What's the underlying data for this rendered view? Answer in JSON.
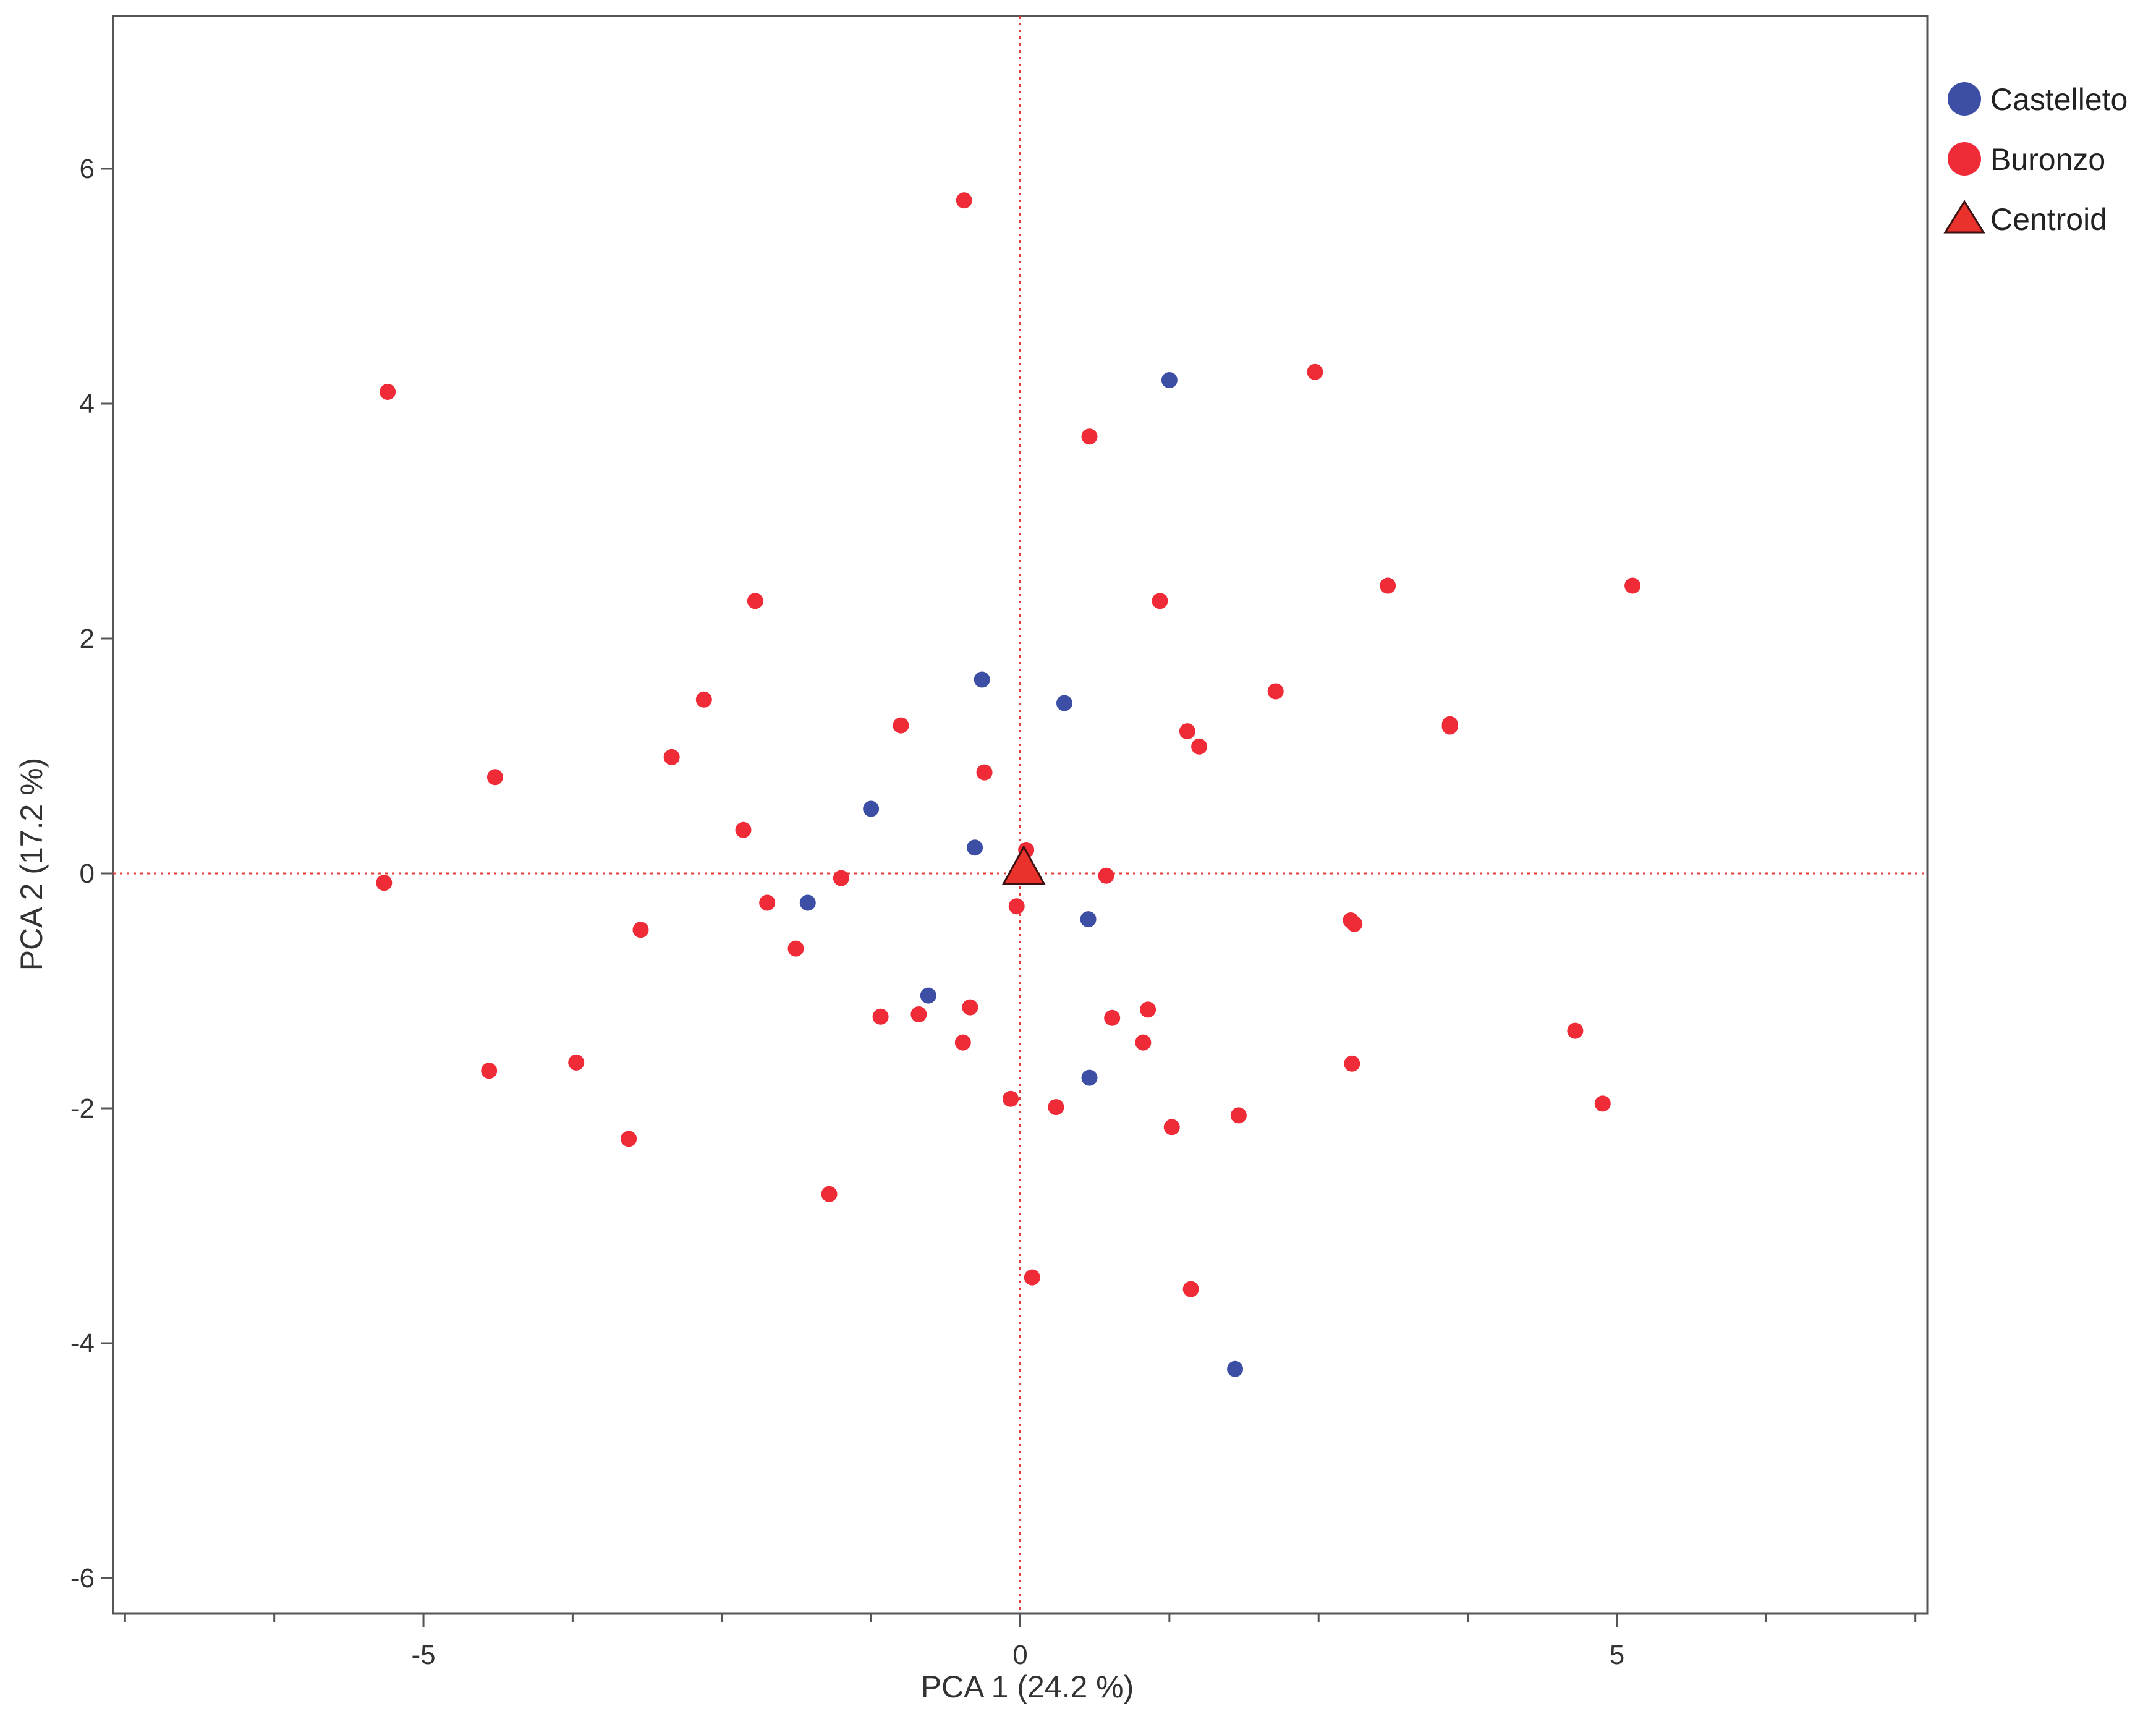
{
  "chart_data": {
    "type": "scatter",
    "title": "",
    "xlabel": "PCA 1 (24.2 %)",
    "ylabel": "PCA 2 (17.2 %)",
    "xlim": [
      -7.6,
      7.6
    ],
    "ylim": [
      -6.3,
      7.3
    ],
    "x_ticks": [
      -5,
      0,
      5
    ],
    "x_minor_ticks": [
      -7.5,
      -6.25,
      -5,
      -3.75,
      -2.5,
      -1.25,
      0,
      1.25,
      2.5,
      3.75,
      5,
      6.25,
      7.5
    ],
    "y_ticks": [
      6,
      4,
      2,
      0,
      -2,
      -4,
      -6
    ],
    "grid": false,
    "reference_lines": {
      "x": 0,
      "y": 0,
      "style": "dotted",
      "color": "#e53a3a"
    },
    "legend": {
      "position": "top-right outside"
    },
    "colors": {
      "Castelleto": "#3c4fa5",
      "Buronzo": "#ee2b37",
      "Centroid": "#e8322b"
    },
    "series": [
      {
        "name": "Castelleto",
        "marker": "circle",
        "points": [
          [
            1.25,
            4.2
          ],
          [
            -0.32,
            1.65
          ],
          [
            0.37,
            1.45
          ],
          [
            -1.25,
            0.55
          ],
          [
            -0.38,
            0.22
          ],
          [
            -1.78,
            -0.25
          ],
          [
            0.57,
            -0.39
          ],
          [
            -0.77,
            -1.04
          ],
          [
            0.58,
            -1.74
          ],
          [
            1.8,
            -4.22
          ]
        ]
      },
      {
        "name": "Buronzo",
        "marker": "circle",
        "points": [
          [
            -0.47,
            5.73
          ],
          [
            -5.3,
            4.1
          ],
          [
            2.47,
            4.27
          ],
          [
            0.58,
            3.72
          ],
          [
            -2.22,
            2.32
          ],
          [
            1.17,
            2.32
          ],
          [
            3.08,
            2.45
          ],
          [
            5.13,
            2.45
          ],
          [
            -2.65,
            1.48
          ],
          [
            2.14,
            1.55
          ],
          [
            -1.0,
            1.26
          ],
          [
            1.4,
            1.21
          ],
          [
            1.5,
            1.08
          ],
          [
            3.6,
            1.27
          ],
          [
            3.6,
            1.25
          ],
          [
            -2.92,
            0.99
          ],
          [
            -0.3,
            0.86
          ],
          [
            -4.4,
            0.82
          ],
          [
            -2.32,
            0.37
          ],
          [
            0.05,
            0.2
          ],
          [
            -5.33,
            -0.08
          ],
          [
            -1.5,
            -0.04
          ],
          [
            0.72,
            -0.02
          ],
          [
            -0.03,
            -0.28
          ],
          [
            -2.12,
            -0.25
          ],
          [
            -3.18,
            -0.48
          ],
          [
            2.77,
            -0.4
          ],
          [
            2.8,
            -0.43
          ],
          [
            -1.88,
            -0.64
          ],
          [
            -0.42,
            -1.14
          ],
          [
            1.07,
            -1.16
          ],
          [
            -1.17,
            -1.22
          ],
          [
            -0.85,
            -1.2
          ],
          [
            0.77,
            -1.23
          ],
          [
            -0.48,
            -1.44
          ],
          [
            1.03,
            -1.44
          ],
          [
            4.65,
            -1.34
          ],
          [
            -4.45,
            -1.68
          ],
          [
            -3.72,
            -1.61
          ],
          [
            2.78,
            -1.62
          ],
          [
            -0.08,
            -1.92
          ],
          [
            0.3,
            -1.99
          ],
          [
            4.88,
            -1.96
          ],
          [
            1.83,
            -2.06
          ],
          [
            1.27,
            -2.16
          ],
          [
            -3.28,
            -2.26
          ],
          [
            -1.6,
            -2.73
          ],
          [
            0.1,
            -3.44
          ],
          [
            1.43,
            -3.54
          ]
        ]
      },
      {
        "name": "Centroid",
        "marker": "triangle",
        "points": [
          [
            0.03,
            0.03
          ]
        ]
      }
    ]
  }
}
